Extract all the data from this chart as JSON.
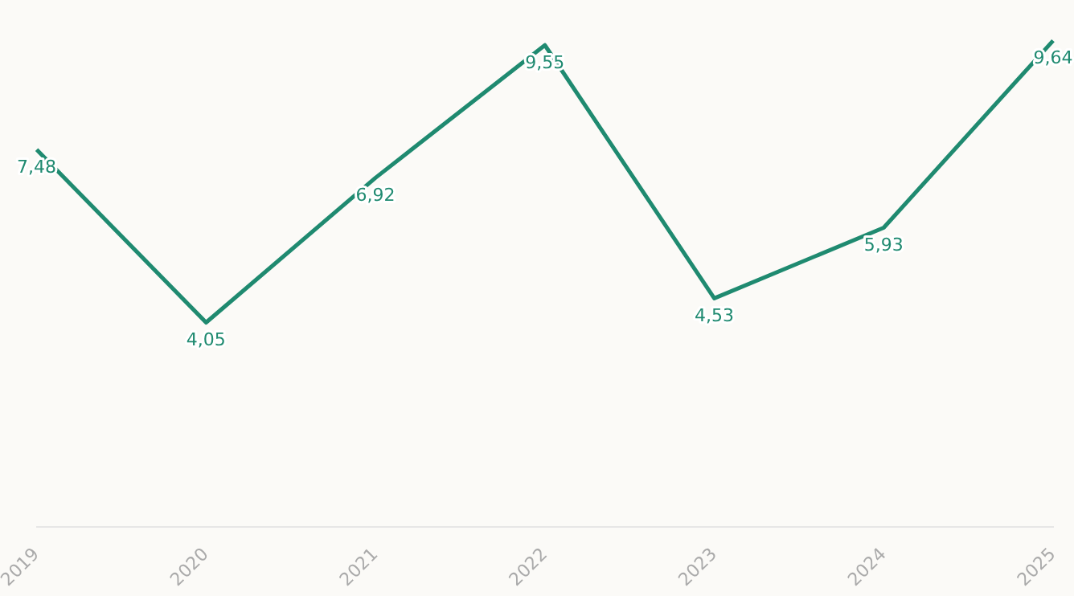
{
  "chart_data": {
    "type": "line",
    "categories": [
      "2019",
      "2020",
      "2021",
      "2022",
      "2023",
      "2024",
      "2025"
    ],
    "series": [
      {
        "color": "#1f8a70",
        "values": [
          7.48,
          4.05,
          6.92,
          9.55,
          4.53,
          5.93,
          9.64
        ],
        "value_labels": [
          "7,48",
          "4,05",
          "6,92",
          "9,55",
          "4,53",
          "5,93",
          "9,64"
        ]
      }
    ],
    "tick_labels": "x",
    "grid": false,
    "legend": false,
    "marker": "none",
    "line_style": "solid"
  }
}
